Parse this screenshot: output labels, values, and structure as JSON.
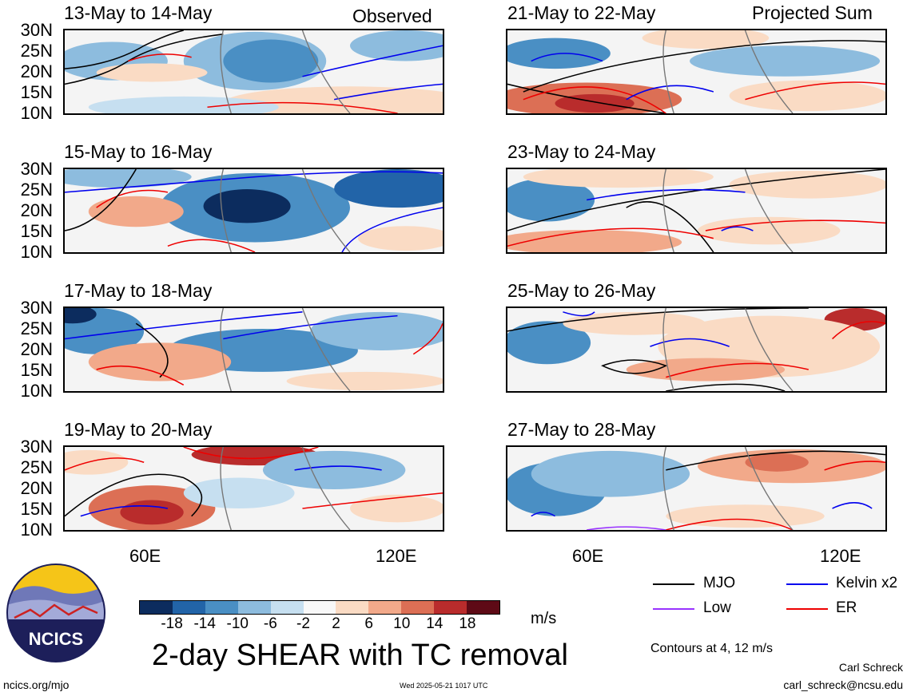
{
  "columns": {
    "left_tag": "Observed",
    "right_tag": "Projected Sum"
  },
  "panels": [
    {
      "title": "13-May to 14-May"
    },
    {
      "title": "15-May to 16-May"
    },
    {
      "title": "17-May to 18-May"
    },
    {
      "title": "19-May to 20-May"
    },
    {
      "title": "21-May to 22-May"
    },
    {
      "title": "23-May to 24-May"
    },
    {
      "title": "25-May to 26-May"
    },
    {
      "title": "27-May to 28-May"
    }
  ],
  "lat_labels": [
    "30N",
    "25N",
    "20N",
    "15N",
    "10N"
  ],
  "lon_labels": [
    "60E",
    "120E"
  ],
  "colorbar": {
    "colors": [
      "#0c2c5e",
      "#2264a8",
      "#4a8fc4",
      "#8dbcde",
      "#c6dff0",
      "#f8f8f8",
      "#fadbc4",
      "#f2a98a",
      "#dc6f55",
      "#b92c2c",
      "#5e0a16"
    ],
    "tick_labels": [
      "-18",
      "-14",
      "-10",
      "-6",
      "-2",
      "2",
      "6",
      "10",
      "14",
      "18"
    ],
    "units": "m/s"
  },
  "title": "2-day SHEAR with TC removal",
  "legend": {
    "items": [
      {
        "label": "MJO",
        "color": "#000000"
      },
      {
        "label": "Kelvin x2",
        "color": "#0000ee"
      },
      {
        "label": "Low",
        "color": "#9933ff"
      },
      {
        "label": "ER",
        "color": "#ee0000"
      }
    ],
    "contour_note": "Contours at 4, 12 m/s"
  },
  "logo": {
    "text": "NCICS"
  },
  "footer": {
    "website": "ncics.org/mjo",
    "timestamp": "Wed 2025-05-21 1017 UTC",
    "author": "Carl Schreck",
    "email": "carl_schreck@ncsu.edu"
  }
}
